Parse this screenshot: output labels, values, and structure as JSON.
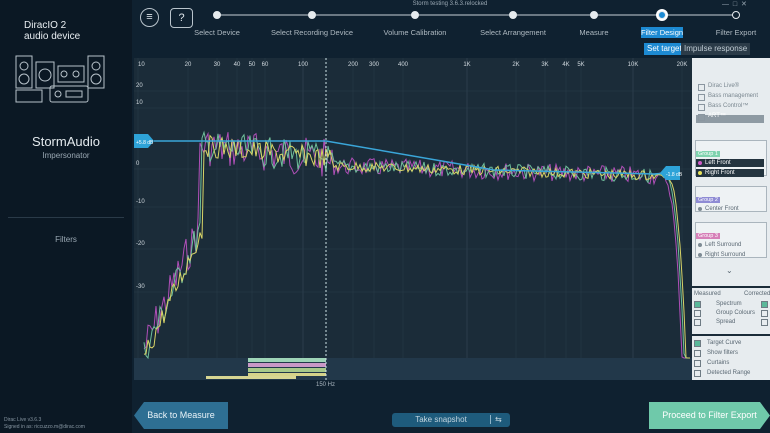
{
  "window_title": "Storm testing 3.6.3.relocked",
  "sidebar": {
    "device_name": "DiracIO 2",
    "device_sub": "audio device",
    "product": "StormAudio",
    "product_sub": "Impersonator",
    "section": "Filters",
    "version": "Dirac Live v3.6.3",
    "signed_in": "Signed in as: riccuzzo.m@dirac.com"
  },
  "steps": [
    "Select Device",
    "Select Recording Device",
    "Volume Calibration",
    "Select Arrangement",
    "Measure",
    "Filter Design",
    "Filter Export"
  ],
  "tabs": [
    "Set target",
    "Impulse response"
  ],
  "plot": {
    "x_labels": [
      "10",
      "20",
      "30",
      "40",
      "50",
      "60",
      "100",
      "200",
      "300",
      "400",
      "1K",
      "2K",
      "3K",
      "4K",
      "5K",
      "10K",
      "20K"
    ],
    "y_labels": [
      "20",
      "10",
      "0",
      "-10",
      "-20",
      "-30"
    ],
    "left_marker": "+5.8 dB",
    "right_marker": "-1.8 dB",
    "cursor_label": "150 Hz"
  },
  "panel": {
    "options": [
      "Dirac Live®",
      "Bass management",
      "Bass Control™",
      "ART™"
    ],
    "groups": [
      {
        "name": "Group 1",
        "channels": [
          "Left Front",
          "Right Front"
        ]
      },
      {
        "name": "Group 2",
        "channels": [
          "Center Front"
        ]
      },
      {
        "name": "Group 3",
        "channels": [
          "Left Surround",
          "Right Surround"
        ]
      }
    ],
    "measured": "Measured",
    "corrected": "Corrected",
    "display": [
      "Spectrum",
      "Group Colours",
      "Spread"
    ],
    "toggles": [
      "Target Curve",
      "Show filters",
      "Curtains",
      "Detected Range"
    ]
  },
  "buttons": {
    "back": "Back to Measure",
    "snapshot": "Take snapshot",
    "proceed": "Proceed to Filter Export"
  }
}
